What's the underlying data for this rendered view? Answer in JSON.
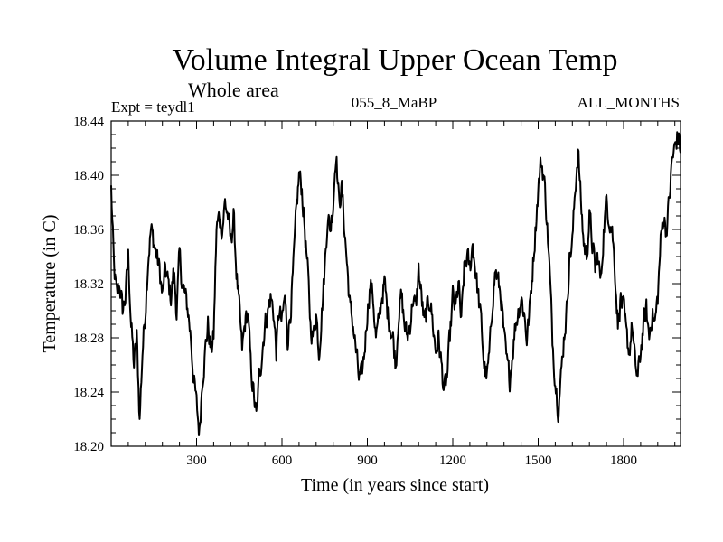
{
  "chart_data": {
    "type": "line",
    "title": "Volume Integral Upper Ocean Temp",
    "subtitle": "Whole area",
    "expt_label": "Expt = teydl1",
    "run_label": "055_8_MaBP",
    "months_label": "ALL_MONTHS",
    "xlabel": "Time (in years since start)",
    "ylabel": "Temperature (in C)",
    "xlim": [
      0,
      2000
    ],
    "ylim": [
      18.2,
      18.44
    ],
    "xticks": [
      300,
      600,
      900,
      1200,
      1500,
      1800
    ],
    "yticks": [
      18.2,
      18.24,
      18.28,
      18.32,
      18.36,
      18.4,
      18.44
    ],
    "ytick_labels": [
      "18.20",
      "18.24",
      "18.28",
      "18.32",
      "18.36",
      "18.40",
      "18.44"
    ],
    "series": [
      {
        "name": "Volume Integral Upper Ocean Temp",
        "color": "#000000",
        "x": [
          0,
          10,
          20,
          30,
          40,
          50,
          60,
          70,
          80,
          90,
          100,
          110,
          120,
          130,
          140,
          150,
          160,
          170,
          180,
          190,
          200,
          210,
          220,
          230,
          240,
          250,
          260,
          270,
          280,
          290,
          300,
          310,
          320,
          330,
          340,
          350,
          360,
          370,
          380,
          390,
          400,
          410,
          420,
          430,
          440,
          450,
          460,
          470,
          480,
          490,
          500,
          510,
          520,
          530,
          540,
          550,
          560,
          570,
          580,
          590,
          600,
          610,
          620,
          630,
          640,
          650,
          660,
          670,
          680,
          690,
          700,
          710,
          720,
          730,
          740,
          750,
          760,
          770,
          780,
          790,
          800,
          810,
          820,
          830,
          840,
          850,
          860,
          870,
          880,
          890,
          900,
          910,
          920,
          930,
          940,
          950,
          960,
          970,
          980,
          990,
          1000,
          1010,
          1020,
          1030,
          1040,
          1050,
          1060,
          1070,
          1080,
          1090,
          1100,
          1110,
          1120,
          1130,
          1140,
          1150,
          1160,
          1170,
          1180,
          1190,
          1200,
          1210,
          1220,
          1230,
          1240,
          1250,
          1260,
          1270,
          1280,
          1290,
          1300,
          1310,
          1320,
          1330,
          1340,
          1350,
          1360,
          1370,
          1380,
          1390,
          1400,
          1410,
          1420,
          1430,
          1440,
          1450,
          1460,
          1470,
          1480,
          1490,
          1500,
          1510,
          1520,
          1530,
          1540,
          1550,
          1560,
          1570,
          1580,
          1590,
          1600,
          1610,
          1620,
          1630,
          1640,
          1650,
          1660,
          1670,
          1680,
          1690,
          1700,
          1710,
          1720,
          1730,
          1740,
          1750,
          1760,
          1770,
          1780,
          1790,
          1800,
          1810,
          1820,
          1830,
          1840,
          1850,
          1860,
          1870,
          1880,
          1890,
          1900,
          1910,
          1920,
          1930,
          1940,
          1950,
          1960,
          1970,
          1980,
          1990,
          2000
        ],
        "values": [
          18.39,
          18.33,
          18.31,
          18.32,
          18.3,
          18.31,
          18.34,
          18.29,
          18.26,
          18.28,
          18.22,
          18.27,
          18.3,
          18.34,
          18.36,
          18.35,
          18.34,
          18.33,
          18.31,
          18.33,
          18.32,
          18.31,
          18.33,
          18.3,
          18.34,
          18.32,
          18.31,
          18.3,
          18.28,
          18.25,
          18.23,
          18.21,
          18.25,
          18.27,
          18.29,
          18.27,
          18.28,
          18.36,
          18.37,
          18.36,
          18.38,
          18.37,
          18.35,
          18.37,
          18.33,
          18.3,
          18.27,
          18.29,
          18.3,
          18.26,
          18.24,
          18.22,
          18.25,
          18.27,
          18.29,
          18.3,
          18.31,
          18.3,
          18.27,
          18.3,
          18.29,
          18.31,
          18.28,
          18.3,
          18.33,
          18.37,
          18.4,
          18.39,
          18.36,
          18.33,
          18.29,
          18.28,
          18.3,
          18.27,
          18.3,
          18.33,
          18.37,
          18.36,
          18.38,
          18.42,
          18.38,
          18.39,
          18.36,
          18.33,
          18.3,
          18.29,
          18.27,
          18.25,
          18.25,
          18.27,
          18.3,
          18.32,
          18.31,
          18.28,
          18.29,
          18.31,
          18.32,
          18.3,
          18.29,
          18.28,
          18.26,
          18.3,
          18.31,
          18.29,
          18.28,
          18.29,
          18.31,
          18.3,
          18.33,
          18.31,
          18.29,
          18.3,
          18.31,
          18.29,
          18.27,
          18.28,
          18.26,
          18.24,
          18.25,
          18.28,
          18.31,
          18.3,
          18.32,
          18.29,
          18.33,
          18.34,
          18.33,
          18.35,
          18.33,
          18.31,
          18.29,
          18.26,
          18.25,
          18.27,
          18.31,
          18.33,
          18.32,
          18.31,
          18.28,
          18.26,
          18.25,
          18.27,
          18.29,
          18.3,
          18.31,
          18.3,
          18.28,
          18.3,
          18.33,
          18.36,
          18.39,
          18.41,
          18.4,
          18.37,
          18.33,
          18.28,
          18.25,
          18.23,
          18.25,
          18.28,
          18.3,
          18.34,
          18.35,
          18.39,
          18.42,
          18.38,
          18.35,
          18.34,
          18.37,
          18.35,
          18.33,
          18.34,
          18.32,
          18.36,
          18.38,
          18.37,
          18.36,
          18.33,
          18.29,
          18.31,
          18.3,
          18.28,
          18.27,
          18.29,
          18.26,
          18.25,
          18.27,
          18.29,
          18.3,
          18.28,
          18.3,
          18.29,
          18.31,
          18.35,
          18.37,
          18.36,
          18.38,
          18.41,
          18.42,
          18.43,
          18.42
        ]
      }
    ]
  }
}
